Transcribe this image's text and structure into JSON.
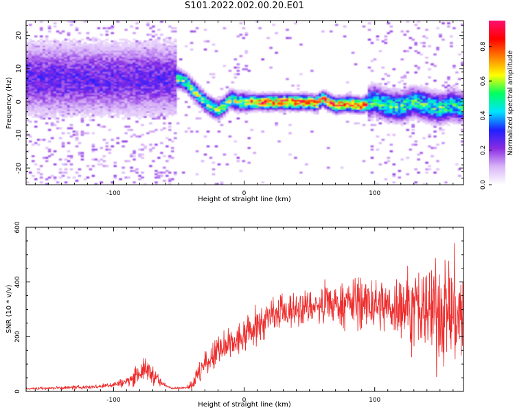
{
  "figure_title": "S101.2022.002.00.20.E01",
  "chart_data": [
    {
      "type": "heatmap",
      "xlabel": "Height of straight line (km)",
      "ylabel": "Frequency (Hz)",
      "xlim": [
        -167,
        168
      ],
      "ylim": [
        -25,
        24.5
      ],
      "x_ticks": [
        -100,
        0,
        100
      ],
      "y_ticks": [
        -20,
        -10,
        0,
        10,
        20
      ],
      "colorbar": {
        "label": "Normalized spectral amplitude",
        "range": [
          0,
          0.95
        ],
        "ticks": [
          "0.0",
          "0.2",
          "0.4",
          "0.6",
          "0.8"
        ],
        "colors": [
          "#ffffff",
          "#d8b4f8",
          "#8a2be2",
          "#2020ff",
          "#00e5ff",
          "#00ff60",
          "#ffff00",
          "#ff7f00",
          "#ff0000",
          "#ff1070"
        ]
      },
      "ridge": {
        "x": [
          -50,
          -45,
          -40,
          -35,
          -30,
          -25,
          -20,
          -15,
          -10,
          -5,
          0,
          20,
          40,
          50,
          55,
          60,
          65,
          70,
          80,
          90,
          100,
          110,
          120,
          130,
          140,
          150,
          160,
          166
        ],
        "frequency": [
          7,
          6,
          4,
          2,
          0,
          -1.5,
          -2.5,
          -1,
          1,
          0,
          0,
          0,
          0,
          0,
          -0.5,
          1,
          0,
          -1,
          -0.5,
          -1,
          0.5,
          -1,
          -1.5,
          0,
          -1,
          -2,
          -1,
          -1.5
        ]
      }
    },
    {
      "type": "line",
      "xlabel": "Height of straight line (km)",
      "ylabel": "SNR (10 * v/v)",
      "xlim": [
        -167,
        168
      ],
      "ylim": [
        0,
        600
      ],
      "x_ticks": [
        -100,
        0,
        100
      ],
      "y_ticks": [
        0,
        200,
        400,
        600
      ],
      "series": [
        {
          "color": "#ee2c2c",
          "x": [
            -167,
            -150,
            -130,
            -110,
            -100,
            -90,
            -85,
            -80,
            -75,
            -70,
            -65,
            -60,
            -55,
            -50,
            -45,
            -40,
            -35,
            -30,
            -25,
            -20,
            -10,
            0,
            10,
            20,
            30,
            40,
            50,
            60,
            70,
            80,
            90,
            100,
            110,
            120,
            130,
            140,
            150,
            160,
            168
          ],
          "values": [
            10,
            12,
            14,
            18,
            25,
            35,
            50,
            70,
            80,
            62,
            35,
            20,
            13,
            12,
            12,
            25,
            60,
            100,
            120,
            140,
            170,
            200,
            240,
            270,
            290,
            300,
            310,
            310,
            320,
            320,
            320,
            315,
            310,
            315,
            300,
            290,
            300,
            290,
            270
          ],
          "spread": [
            4,
            6,
            7,
            9,
            12,
            20,
            30,
            40,
            45,
            40,
            20,
            8,
            4,
            4,
            4,
            20,
            50,
            60,
            60,
            65,
            65,
            70,
            75,
            75,
            70,
            70,
            70,
            75,
            80,
            90,
            100,
            100,
            110,
            130,
            150,
            180,
            210,
            230,
            200
          ]
        }
      ]
    }
  ]
}
